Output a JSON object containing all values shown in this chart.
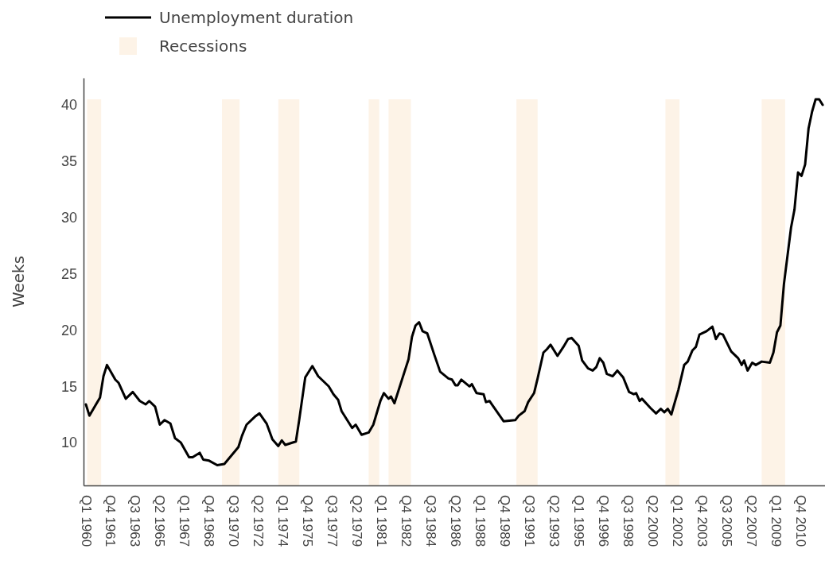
{
  "chart_data": {
    "type": "line",
    "ylabel": "Weeks",
    "xlim": [
      "1959-11",
      "2012-07"
    ],
    "ylim": [
      6.2,
      42.4
    ],
    "xticks": [
      {
        "value": "1960-01",
        "label": "Q1 1960"
      },
      {
        "value": "1961-10",
        "label": "Q4 1961"
      },
      {
        "value": "1963-07",
        "label": "Q3 1963"
      },
      {
        "value": "1965-04",
        "label": "Q2 1965"
      },
      {
        "value": "1967-01",
        "label": "Q1 1967"
      },
      {
        "value": "1968-10",
        "label": "Q4 1968"
      },
      {
        "value": "1970-07",
        "label": "Q3 1970"
      },
      {
        "value": "1972-04",
        "label": "Q2 1972"
      },
      {
        "value": "1974-01",
        "label": "Q1 1974"
      },
      {
        "value": "1975-10",
        "label": "Q4 1975"
      },
      {
        "value": "1977-07",
        "label": "Q3 1977"
      },
      {
        "value": "1979-04",
        "label": "Q2 1979"
      },
      {
        "value": "1981-01",
        "label": "Q1 1981"
      },
      {
        "value": "1982-10",
        "label": "Q4 1982"
      },
      {
        "value": "1984-07",
        "label": "Q3 1984"
      },
      {
        "value": "1986-04",
        "label": "Q2 1986"
      },
      {
        "value": "1988-01",
        "label": "Q1 1988"
      },
      {
        "value": "1989-10",
        "label": "Q4 1989"
      },
      {
        "value": "1991-07",
        "label": "Q3 1991"
      },
      {
        "value": "1993-04",
        "label": "Q2 1993"
      },
      {
        "value": "1995-01",
        "label": "Q1 1995"
      },
      {
        "value": "1996-10",
        "label": "Q4 1996"
      },
      {
        "value": "1998-07",
        "label": "Q3 1998"
      },
      {
        "value": "2000-04",
        "label": "Q2 2000"
      },
      {
        "value": "2002-01",
        "label": "Q1 2002"
      },
      {
        "value": "2003-10",
        "label": "Q4 2003"
      },
      {
        "value": "2005-07",
        "label": "Q3 2005"
      },
      {
        "value": "2007-04",
        "label": "Q2 2007"
      },
      {
        "value": "2009-01",
        "label": "Q1 2009"
      },
      {
        "value": "2010-10",
        "label": "Q4 2010"
      }
    ],
    "yticks": [
      10,
      15,
      20,
      25,
      30,
      35,
      40
    ],
    "grid": false,
    "legend": "top left",
    "marker": "none",
    "line_style": "solid",
    "bands": [
      {
        "axis": "x",
        "from": "1960-02",
        "to": "1961-02",
        "label": "Recessions",
        "color": "#fdf3e7"
      },
      {
        "axis": "x",
        "from": "1969-09",
        "to": "1970-12",
        "color": "#fdf3e7"
      },
      {
        "axis": "x",
        "from": "1973-09",
        "to": "1975-03",
        "color": "#fdf3e7"
      },
      {
        "axis": "x",
        "from": "1980-02",
        "to": "1980-11",
        "color": "#fdf3e7"
      },
      {
        "axis": "x",
        "from": "1981-07",
        "to": "1983-02",
        "color": "#fdf3e7"
      },
      {
        "axis": "x",
        "from": "1990-08",
        "to": "1992-02",
        "color": "#fdf3e7"
      },
      {
        "axis": "x",
        "from": "2001-03",
        "to": "2002-03",
        "color": "#fdf3e7"
      },
      {
        "axis": "x",
        "from": "2008-01",
        "to": "2009-09",
        "color": "#fdf3e7"
      }
    ],
    "series": [
      {
        "name": "Unemployment duration",
        "color": "#000000",
        "x": [
          "1960-01",
          "1960-04",
          "1961-01",
          "1961-04",
          "1961-07",
          "1962-02",
          "1962-05",
          "1962-11",
          "1963-05",
          "1963-11",
          "1964-04",
          "1964-07",
          "1964-12",
          "1965-04",
          "1965-08",
          "1966-01",
          "1966-05",
          "1966-10",
          "1967-05",
          "1967-08",
          "1968-02",
          "1968-05",
          "1968-10",
          "1969-05",
          "1969-11",
          "1970-11",
          "1971-02",
          "1971-06",
          "1972-01",
          "1972-05",
          "1972-11",
          "1973-04",
          "1973-09",
          "1973-12",
          "1974-03",
          "1974-12",
          "1975-03",
          "1975-08",
          "1976-02",
          "1976-07",
          "1977-04",
          "1977-08",
          "1977-12",
          "1978-03",
          "1978-12",
          "1979-03",
          "1979-08",
          "1980-02",
          "1980-06",
          "1980-12",
          "1981-03",
          "1981-07",
          "1981-09",
          "1981-12",
          "1982-12",
          "1983-03",
          "1983-06",
          "1983-09",
          "1983-12",
          "1984-04",
          "1984-10",
          "1985-03",
          "1985-10",
          "1986-01",
          "1986-04",
          "1986-06",
          "1986-09",
          "1987-04",
          "1987-06",
          "1987-10",
          "1988-04",
          "1988-06",
          "1988-09",
          "1989-09",
          "1990-07",
          "1990-10",
          "1991-03",
          "1991-06",
          "1991-11",
          "1992-02",
          "1992-07",
          "1992-10",
          "1993-01",
          "1993-07",
          "1993-12",
          "1994-04",
          "1994-07",
          "1995-01",
          "1995-04",
          "1995-09",
          "1996-01",
          "1996-04",
          "1996-07",
          "1996-10",
          "1997-01",
          "1997-06",
          "1997-10",
          "1998-03",
          "1998-08",
          "1998-12",
          "1999-02",
          "1999-05",
          "1999-07",
          "2000-02",
          "2000-07",
          "2000-11",
          "2001-02",
          "2001-05",
          "2001-08",
          "2002-02",
          "2002-07",
          "2002-10",
          "2003-02",
          "2003-05",
          "2003-08",
          "2004-02",
          "2004-07",
          "2004-10",
          "2005-01",
          "2005-04",
          "2005-11",
          "2006-05",
          "2006-08",
          "2006-10",
          "2007-01",
          "2007-05",
          "2007-08",
          "2008-01",
          "2008-08",
          "2008-11",
          "2009-02",
          "2009-05",
          "2009-08",
          "2010-02",
          "2010-05",
          "2010-08",
          "2010-11",
          "2011-02",
          "2011-05",
          "2011-08",
          "2011-11",
          "2012-02",
          "2012-05"
        ],
        "values": [
          13.4,
          12.4,
          14.0,
          15.9,
          16.9,
          15.6,
          15.3,
          13.9,
          14.5,
          13.7,
          13.4,
          13.7,
          13.2,
          11.6,
          12.0,
          11.7,
          10.4,
          10.0,
          8.7,
          8.7,
          9.1,
          8.5,
          8.4,
          8.0,
          8.1,
          9.6,
          10.6,
          11.6,
          12.3,
          12.6,
          11.7,
          10.3,
          9.7,
          10.2,
          9.8,
          10.1,
          12.1,
          15.8,
          16.8,
          15.9,
          15.0,
          14.3,
          13.8,
          12.8,
          11.3,
          11.6,
          10.7,
          10.9,
          11.6,
          13.7,
          14.4,
          13.9,
          14.1,
          13.5,
          17.4,
          19.4,
          20.4,
          20.7,
          19.9,
          19.7,
          17.8,
          16.3,
          15.7,
          15.6,
          15.1,
          15.1,
          15.6,
          15.0,
          15.2,
          14.4,
          14.3,
          13.6,
          13.7,
          11.9,
          12.0,
          12.4,
          12.8,
          13.6,
          14.4,
          15.7,
          18.0,
          18.3,
          18.7,
          17.7,
          18.5,
          19.2,
          19.3,
          18.6,
          17.3,
          16.6,
          16.4,
          16.7,
          17.5,
          17.1,
          16.1,
          15.9,
          16.4,
          15.8,
          14.5,
          14.3,
          14.4,
          13.7,
          13.9,
          13.1,
          12.6,
          13.0,
          12.7,
          13.0,
          12.5,
          14.7,
          16.9,
          17.2,
          18.2,
          18.5,
          19.6,
          19.9,
          20.3,
          19.2,
          19.7,
          19.6,
          18.1,
          17.5,
          16.9,
          17.3,
          16.4,
          17.1,
          16.9,
          17.2,
          17.1,
          18.0,
          19.8,
          20.4,
          24.1,
          29.1,
          30.7,
          34.0,
          33.7,
          34.7,
          37.9,
          39.4,
          40.5,
          40.5,
          40.0
        ]
      }
    ]
  }
}
